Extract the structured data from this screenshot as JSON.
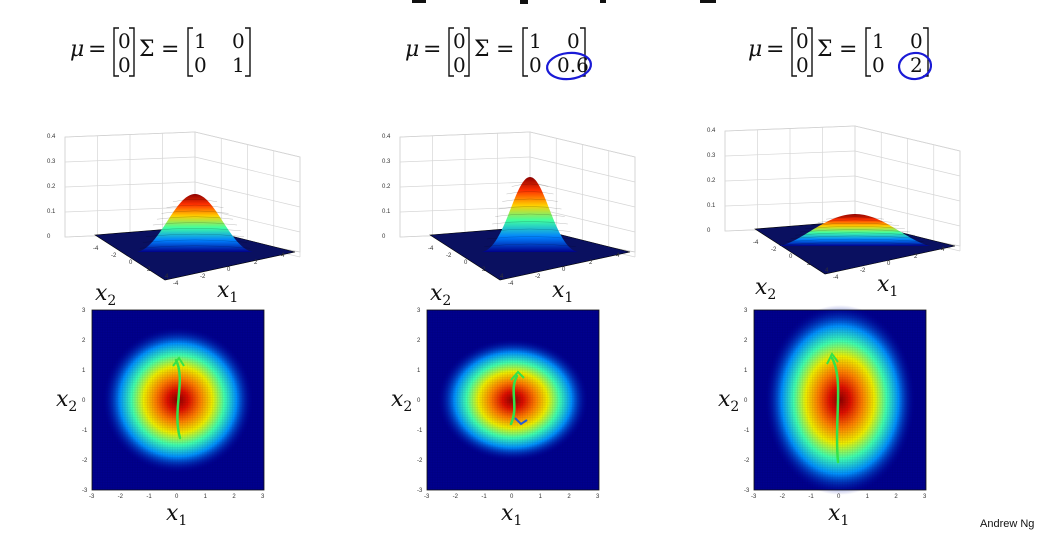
{
  "colors": {
    "background": "#ffffff",
    "annotation_ink": "#1a1ad6",
    "contour_ink": "#33e24a",
    "heatmap_background": "#00008f"
  },
  "footer": {
    "credit": "Andrew Ng"
  },
  "tick_labels": {
    "z_axis": [
      "0",
      "0.1",
      "0.2",
      "0.3",
      "0.4"
    ],
    "xy_axis": [
      "-4",
      "-2",
      "0",
      "2",
      "4"
    ],
    "heatmap_axis": [
      "-3",
      "-2",
      "-1",
      "0",
      "1",
      "2",
      "3"
    ]
  },
  "panels": [
    {
      "mu": [
        "0",
        "0"
      ],
      "sigma": [
        [
          "1",
          "0"
        ],
        [
          "0",
          "1"
        ]
      ],
      "labels": {
        "mu_symbol": "μ",
        "sigma_symbol": "Σ",
        "equals": "=",
        "axis_x1": "x",
        "axis_x2": "x",
        "sub1": "1",
        "sub2": "2"
      },
      "highlight_cell": null,
      "variance": {
        "x1": 1,
        "x2": 1
      }
    },
    {
      "mu": [
        "0",
        "0"
      ],
      "sigma": [
        [
          "1",
          "0"
        ],
        [
          "0",
          "0.6"
        ]
      ],
      "labels": {
        "mu_symbol": "μ",
        "sigma_symbol": "Σ",
        "equals": "=",
        "axis_x1": "x",
        "axis_x2": "x",
        "sub1": "1",
        "sub2": "2"
      },
      "highlight_cell": "sigma_22",
      "variance": {
        "x1": 1,
        "x2": 0.6
      }
    },
    {
      "mu": [
        "0",
        "0"
      ],
      "sigma": [
        [
          "1",
          "0"
        ],
        [
          "0",
          "2"
        ]
      ],
      "labels": {
        "mu_symbol": "μ",
        "sigma_symbol": "Σ",
        "equals": "=",
        "axis_x1": "x",
        "axis_x2": "x",
        "sub1": "1",
        "sub2": "2"
      },
      "highlight_cell": "sigma_22",
      "variance": {
        "x1": 1,
        "x2": 2
      }
    }
  ]
}
